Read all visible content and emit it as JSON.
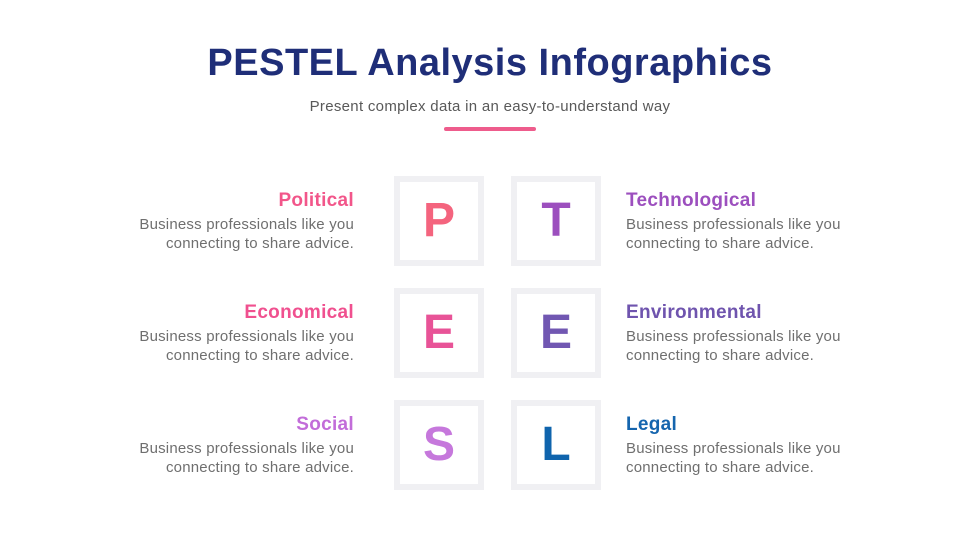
{
  "header": {
    "title": "PESTEL Analysis Infographics",
    "title_color": "#1F2E78",
    "subtitle": "Present complex data in an easy-to-understand way",
    "divider_color": "#EE5C8C"
  },
  "rows": [
    {
      "left": {
        "title": "Political",
        "title_color": "#F2568A",
        "letter": "P",
        "letter_color": "#F4647E",
        "desc1": "Business professionals like you",
        "desc2": "connecting to share advice."
      },
      "right": {
        "title": "Technological",
        "title_color": "#9C4FBE",
        "letter": "T",
        "letter_color": "#9C4FBE",
        "desc1": "Business professionals like you",
        "desc2": "connecting to share advice."
      }
    },
    {
      "left": {
        "title": "Economical",
        "title_color": "#F0508F",
        "letter": "E",
        "letter_color": "#E85397",
        "desc1": "Business professionals like you",
        "desc2": "connecting to share advice."
      },
      "right": {
        "title": "Environmental",
        "title_color": "#6F54AE",
        "letter": "E",
        "letter_color": "#7157B2",
        "desc1": "Business professionals like you",
        "desc2": "connecting to share advice."
      }
    },
    {
      "left": {
        "title": "Social",
        "title_color": "#C26DD9",
        "letter": "S",
        "letter_color": "#C678DC",
        "desc1": "Business professionals like you",
        "desc2": "connecting to share advice."
      },
      "right": {
        "title": "Legal",
        "title_color": "#1565AE",
        "letter": "L",
        "letter_color": "#0F64AD",
        "desc1": "Business professionals like you",
        "desc2": "connecting to share advice."
      }
    }
  ]
}
